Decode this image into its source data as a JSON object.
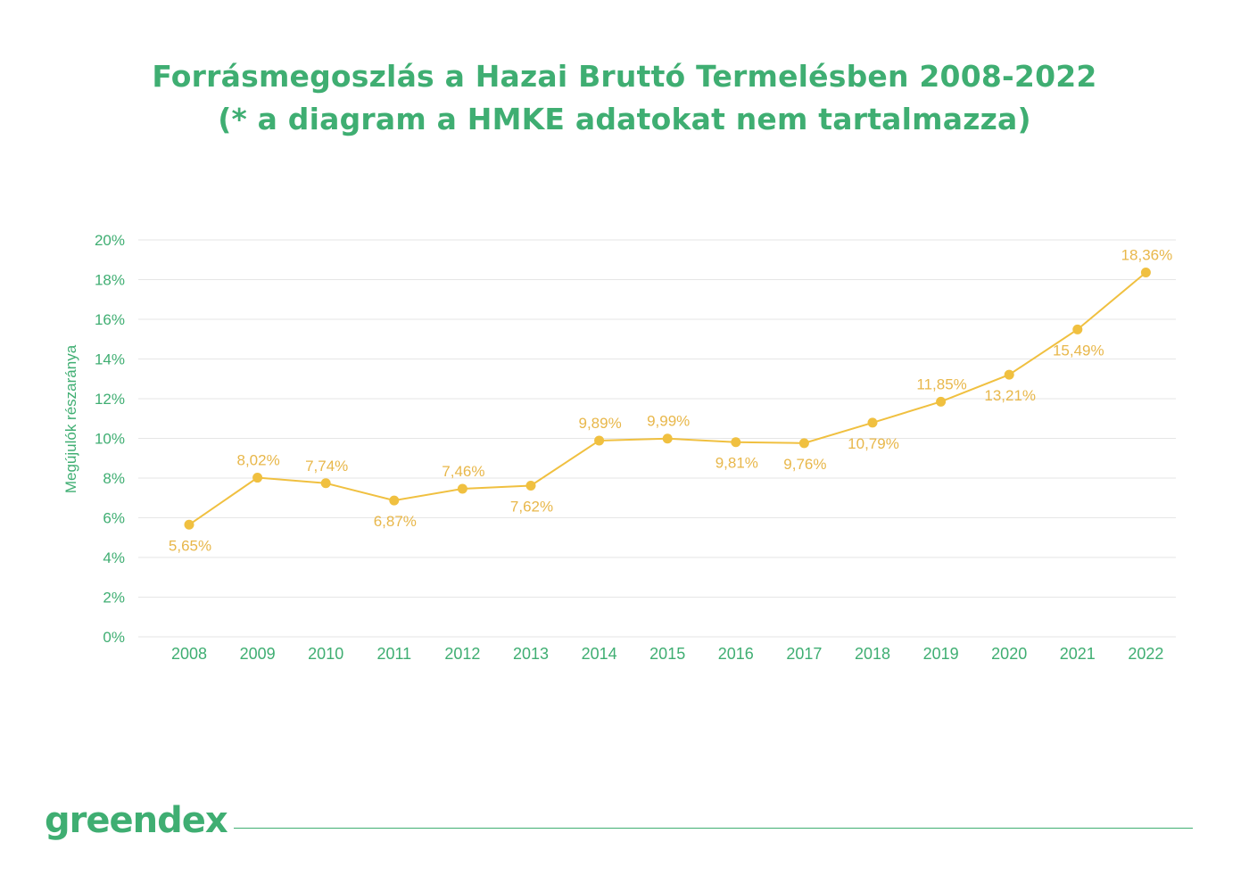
{
  "header": {
    "title_line1": "Forrásmegoszlás a Hazai Bruttó Termelésben 2008-2022",
    "title_line2": "(* a diagram a HMKE adatokat nem tartalmazza)"
  },
  "brand": {
    "name": "greendex"
  },
  "colors": {
    "title": "#3fae72",
    "axis_text": "#3fae72",
    "series": "#f0c040",
    "data_label": "#e8b74a",
    "gridline": "#e6e6e6"
  },
  "chart_data": {
    "type": "line",
    "title": "",
    "xlabel": "",
    "ylabel": "Megújulók részaránya",
    "categories": [
      "2008",
      "2009",
      "2010",
      "2011",
      "2012",
      "2013",
      "2014",
      "2015",
      "2016",
      "2017",
      "2018",
      "2019",
      "2020",
      "2021",
      "2022"
    ],
    "series": [
      {
        "values": [
          5.65,
          8.02,
          7.74,
          6.87,
          7.46,
          7.62,
          9.89,
          9.99,
          9.81,
          9.76,
          10.79,
          11.85,
          13.21,
          15.49,
          18.36
        ],
        "labels": [
          "5,65%",
          "8,02%",
          "7,74%",
          "6,87%",
          "7,46%",
          "7,62%",
          "9,89%",
          "9,99%",
          "9,81%",
          "9,76%",
          "10,79%",
          "11,85%",
          "13,21%",
          "15,49%",
          "18,36%"
        ],
        "label_positions": [
          "below",
          "above",
          "above",
          "below",
          "above",
          "below",
          "above",
          "above",
          "below",
          "below",
          "below",
          "above",
          "below",
          "below",
          "above"
        ]
      }
    ],
    "ylim": [
      0,
      20
    ],
    "yticks": [
      0,
      2,
      4,
      6,
      8,
      10,
      12,
      14,
      16,
      18,
      20
    ],
    "ytick_labels": [
      "0%",
      "2%",
      "4%",
      "6%",
      "8%",
      "10%",
      "12%",
      "14%",
      "16%",
      "18%",
      "20%"
    ],
    "grid": true,
    "legend": "none"
  }
}
